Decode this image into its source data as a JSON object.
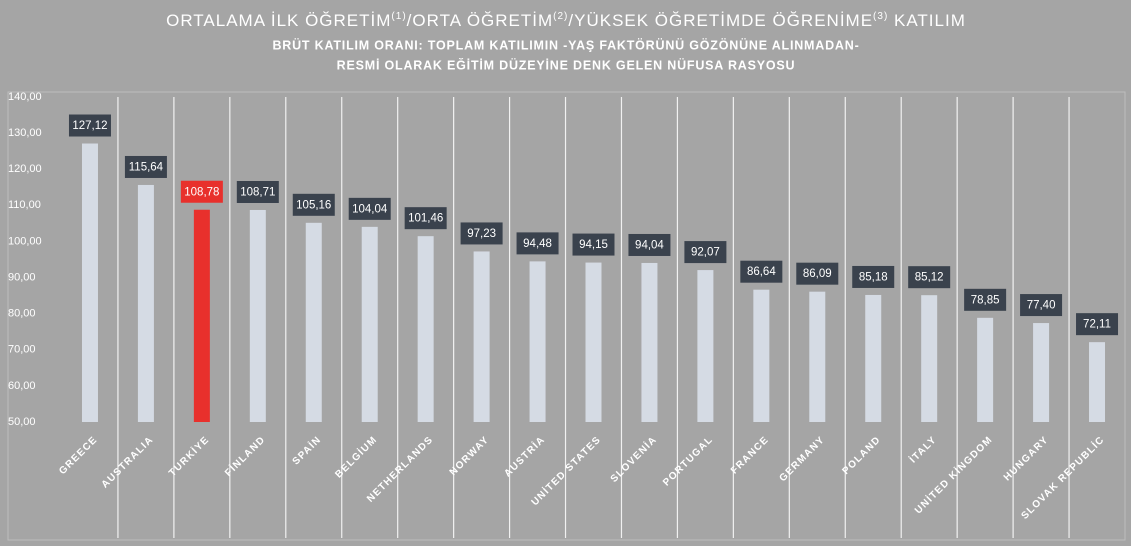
{
  "chart_data": {
    "type": "bar",
    "title": [
      "ORTALAMA İLK ÖĞRETİM",
      "(1)",
      "/ORTA ÖĞRETİM",
      "(2)",
      "/YÜKSEK ÖĞRETİMDE ÖĞRENİME",
      "(3)",
      " KATILIM"
    ],
    "subtitle": [
      "BRÜT KATILIM ORANI: TOPLAM KATILIMIN -YAŞ FAKTÖRÜNÜ GÖZÖNÜNE ALINMADAN-",
      "RESMİ OLARAK EĞİTİM DÜZEYİNE DENK GELEN NÜFUSA RASYOSU"
    ],
    "categories": [
      "GREECE",
      "AUSTRALIA",
      "TURKİYE",
      "FİNLAND",
      "SPAİN",
      "BELGİUM",
      "NETHERLANDS",
      "NORWAY",
      "AUSTRİA",
      "UNİTED STATES",
      "SLOVENİA",
      "PORTUGAL",
      "FRANCE",
      "GERMANY",
      "POLAND",
      "İTALY",
      "UNİTED KİNGDOM",
      "HUNGARY",
      "SLOVAK REPUBLİC"
    ],
    "values": [
      127.12,
      115.64,
      108.78,
      108.71,
      105.16,
      104.04,
      101.46,
      97.23,
      94.48,
      94.15,
      94.04,
      92.07,
      86.64,
      86.09,
      85.18,
      85.12,
      78.85,
      77.4,
      72.11
    ],
    "value_labels": [
      "127,12",
      "115,64",
      "108,78",
      "108,71",
      "105,16",
      "104,04",
      "101,46",
      "97,23",
      "94,48",
      "94,15",
      "94,04",
      "92,07",
      "86,64",
      "86,09",
      "85,18",
      "85,12",
      "78,85",
      "77,40",
      "72,11"
    ],
    "color": "#d5dbe4",
    "colors": [
      "#d5dbe4",
      "#d5dbe4",
      "#e8302c",
      "#d5dbe4",
      "#d5dbe4",
      "#d5dbe4",
      "#d5dbe4",
      "#d5dbe4",
      "#d5dbe4",
      "#d5dbe4",
      "#d5dbe4",
      "#d5dbe4",
      "#d5dbe4",
      "#d5dbe4",
      "#d5dbe4",
      "#d5dbe4",
      "#d5dbe4",
      "#d5dbe4",
      "#d5dbe4"
    ],
    "label_color": "#3a424d",
    "ylim": [
      50,
      140
    ],
    "yticks": [
      {
        "value": 50,
        "label": "50,00"
      },
      {
        "value": 60,
        "label": "60,00"
      },
      {
        "value": 70,
        "label": "70,00"
      },
      {
        "value": 80,
        "label": "80,00"
      },
      {
        "value": 90,
        "label": "90,00"
      },
      {
        "value": 100,
        "label": "100,00"
      },
      {
        "value": 110,
        "label": "110,00"
      },
      {
        "value": 120,
        "label": "120,00"
      },
      {
        "value": 130,
        "label": "130,00"
      },
      {
        "value": 140,
        "label": "140,00"
      }
    ],
    "grid": false
  }
}
